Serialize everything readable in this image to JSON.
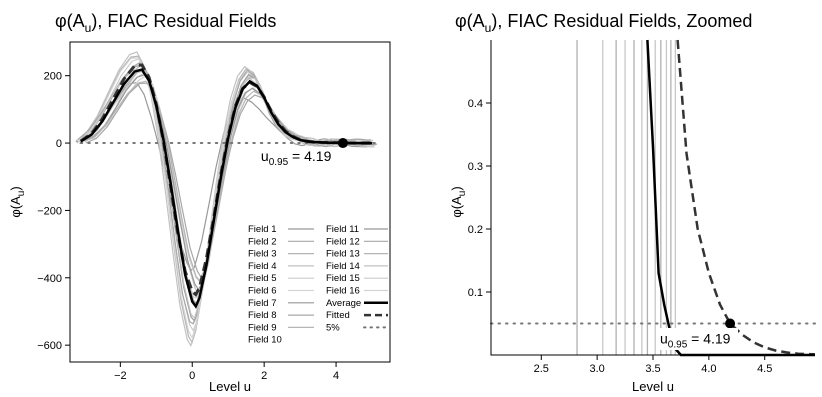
{
  "chart_data": [
    {
      "type": "line",
      "title_main": "φ(A",
      "title_sub": "u",
      "title_rest": "), FIAC Residual Fields",
      "xlabel": "Level u",
      "ylabel_main": "φ(A",
      "ylabel_sub": "u",
      "ylabel_rest": ")",
      "xlim": [
        -3.4,
        5.5
      ],
      "ylim": [
        -650,
        300
      ],
      "xticks": [
        -2,
        0,
        2,
        4
      ],
      "yticks": [
        -600,
        -400,
        -200,
        0,
        200
      ],
      "grid": false,
      "legend_position": "bottom-right",
      "legend": {
        "col1": [
          "Field 1",
          "Field 2",
          "Field 3",
          "Field 4",
          "Field 5",
          "Field 6",
          "Field 7",
          "Field 8",
          "Field 9",
          "Field 10"
        ],
        "col2": [
          "Field 11",
          "Field 12",
          "Field 13",
          "Field 14",
          "Field 15",
          "Field 16",
          "Average",
          "Fitted",
          "5%"
        ]
      },
      "threshold_y": 0,
      "point": {
        "x": 4.19,
        "y": 0
      },
      "annotation": {
        "main": "u",
        "sub": "0.95",
        "rest": " = 4.19"
      },
      "series_average": {
        "x": [
          -3.1,
          -2.8,
          -2.5,
          -2.2,
          -1.9,
          -1.6,
          -1.4,
          -1.2,
          -1.0,
          -0.8,
          -0.6,
          -0.4,
          -0.2,
          0.0,
          0.1,
          0.2,
          0.4,
          0.6,
          0.8,
          1.0,
          1.2,
          1.4,
          1.6,
          1.8,
          2.0,
          2.2,
          2.4,
          2.6,
          2.8,
          3.0,
          3.2,
          3.4,
          3.6,
          3.8,
          4.0,
          4.2,
          4.6,
          5.0
        ],
        "y": [
          5,
          25,
          65,
          120,
          175,
          212,
          218,
          185,
          110,
          10,
          -120,
          -260,
          -390,
          -470,
          -485,
          -460,
          -360,
          -230,
          -100,
          15,
          105,
          160,
          183,
          170,
          135,
          90,
          55,
          32,
          18,
          9,
          5,
          3,
          2,
          1,
          1,
          0,
          0,
          0
        ]
      },
      "series_fitted": {
        "x": [
          -3.1,
          -2.8,
          -2.5,
          -2.2,
          -1.9,
          -1.6,
          -1.4,
          -1.2,
          -1.0,
          -0.8,
          -0.6,
          -0.4,
          -0.2,
          0.0,
          0.1,
          0.2,
          0.4,
          0.6,
          0.8,
          1.0,
          1.2,
          1.4,
          1.6,
          1.8,
          2.0,
          2.2,
          2.4,
          2.6,
          2.8,
          3.0,
          3.2,
          3.4,
          3.6,
          3.8,
          4.0,
          4.2,
          4.6,
          5.0
        ],
        "y": [
          6,
          28,
          72,
          130,
          190,
          230,
          232,
          195,
          115,
          5,
          -130,
          -270,
          -380,
          -440,
          -450,
          -430,
          -340,
          -220,
          -90,
          20,
          110,
          162,
          180,
          168,
          136,
          95,
          60,
          35,
          20,
          10,
          5,
          3,
          2,
          1,
          1,
          0,
          0,
          0
        ]
      }
    },
    {
      "type": "line",
      "title_main": "φ(A",
      "title_sub": "u",
      "title_rest": "), FIAC Residual Fields, Zoomed",
      "xlabel": "Level u",
      "ylabel_main": "φ(A",
      "ylabel_sub": "u",
      "ylabel_rest": ")",
      "xlim": [
        2.05,
        4.95
      ],
      "ylim": [
        0,
        0.5
      ],
      "xticks": [
        2.5,
        3.0,
        3.5,
        4.0,
        4.5
      ],
      "xtick_labels": [
        "2.5",
        "3.0",
        "3.5",
        "4.0",
        "4.5"
      ],
      "yticks": [
        0.1,
        0.2,
        0.3,
        0.4
      ],
      "yticks_labels": [
        "0.1",
        "0.2",
        "0.3",
        "0.4"
      ],
      "grid": false,
      "threshold_y": 0.05,
      "point": {
        "x": 4.19,
        "y": 0.05
      },
      "annotation": {
        "main": "u",
        "sub": "0.95",
        "rest": " = 4.19"
      },
      "field_crossings_x": [
        2.82,
        3.05,
        3.17,
        3.25,
        3.33,
        3.4,
        3.45,
        3.52,
        3.57,
        3.62,
        3.66,
        3.7
      ],
      "series_average": {
        "x": [
          3.45,
          3.5,
          3.55,
          3.6,
          3.65,
          3.7,
          3.75,
          4.95
        ],
        "y": [
          0.5,
          0.33,
          0.13,
          0.08,
          0.04,
          0.01,
          0.0,
          0.0
        ]
      },
      "series_fitted": {
        "x": [
          3.72,
          3.8,
          3.9,
          4.0,
          4.1,
          4.19,
          4.3,
          4.4,
          4.5,
          4.6,
          4.7,
          4.8,
          4.95
        ],
        "y": [
          0.5,
          0.32,
          0.2,
          0.13,
          0.08,
          0.05,
          0.032,
          0.02,
          0.012,
          0.007,
          0.004,
          0.002,
          0.001
        ]
      }
    }
  ]
}
